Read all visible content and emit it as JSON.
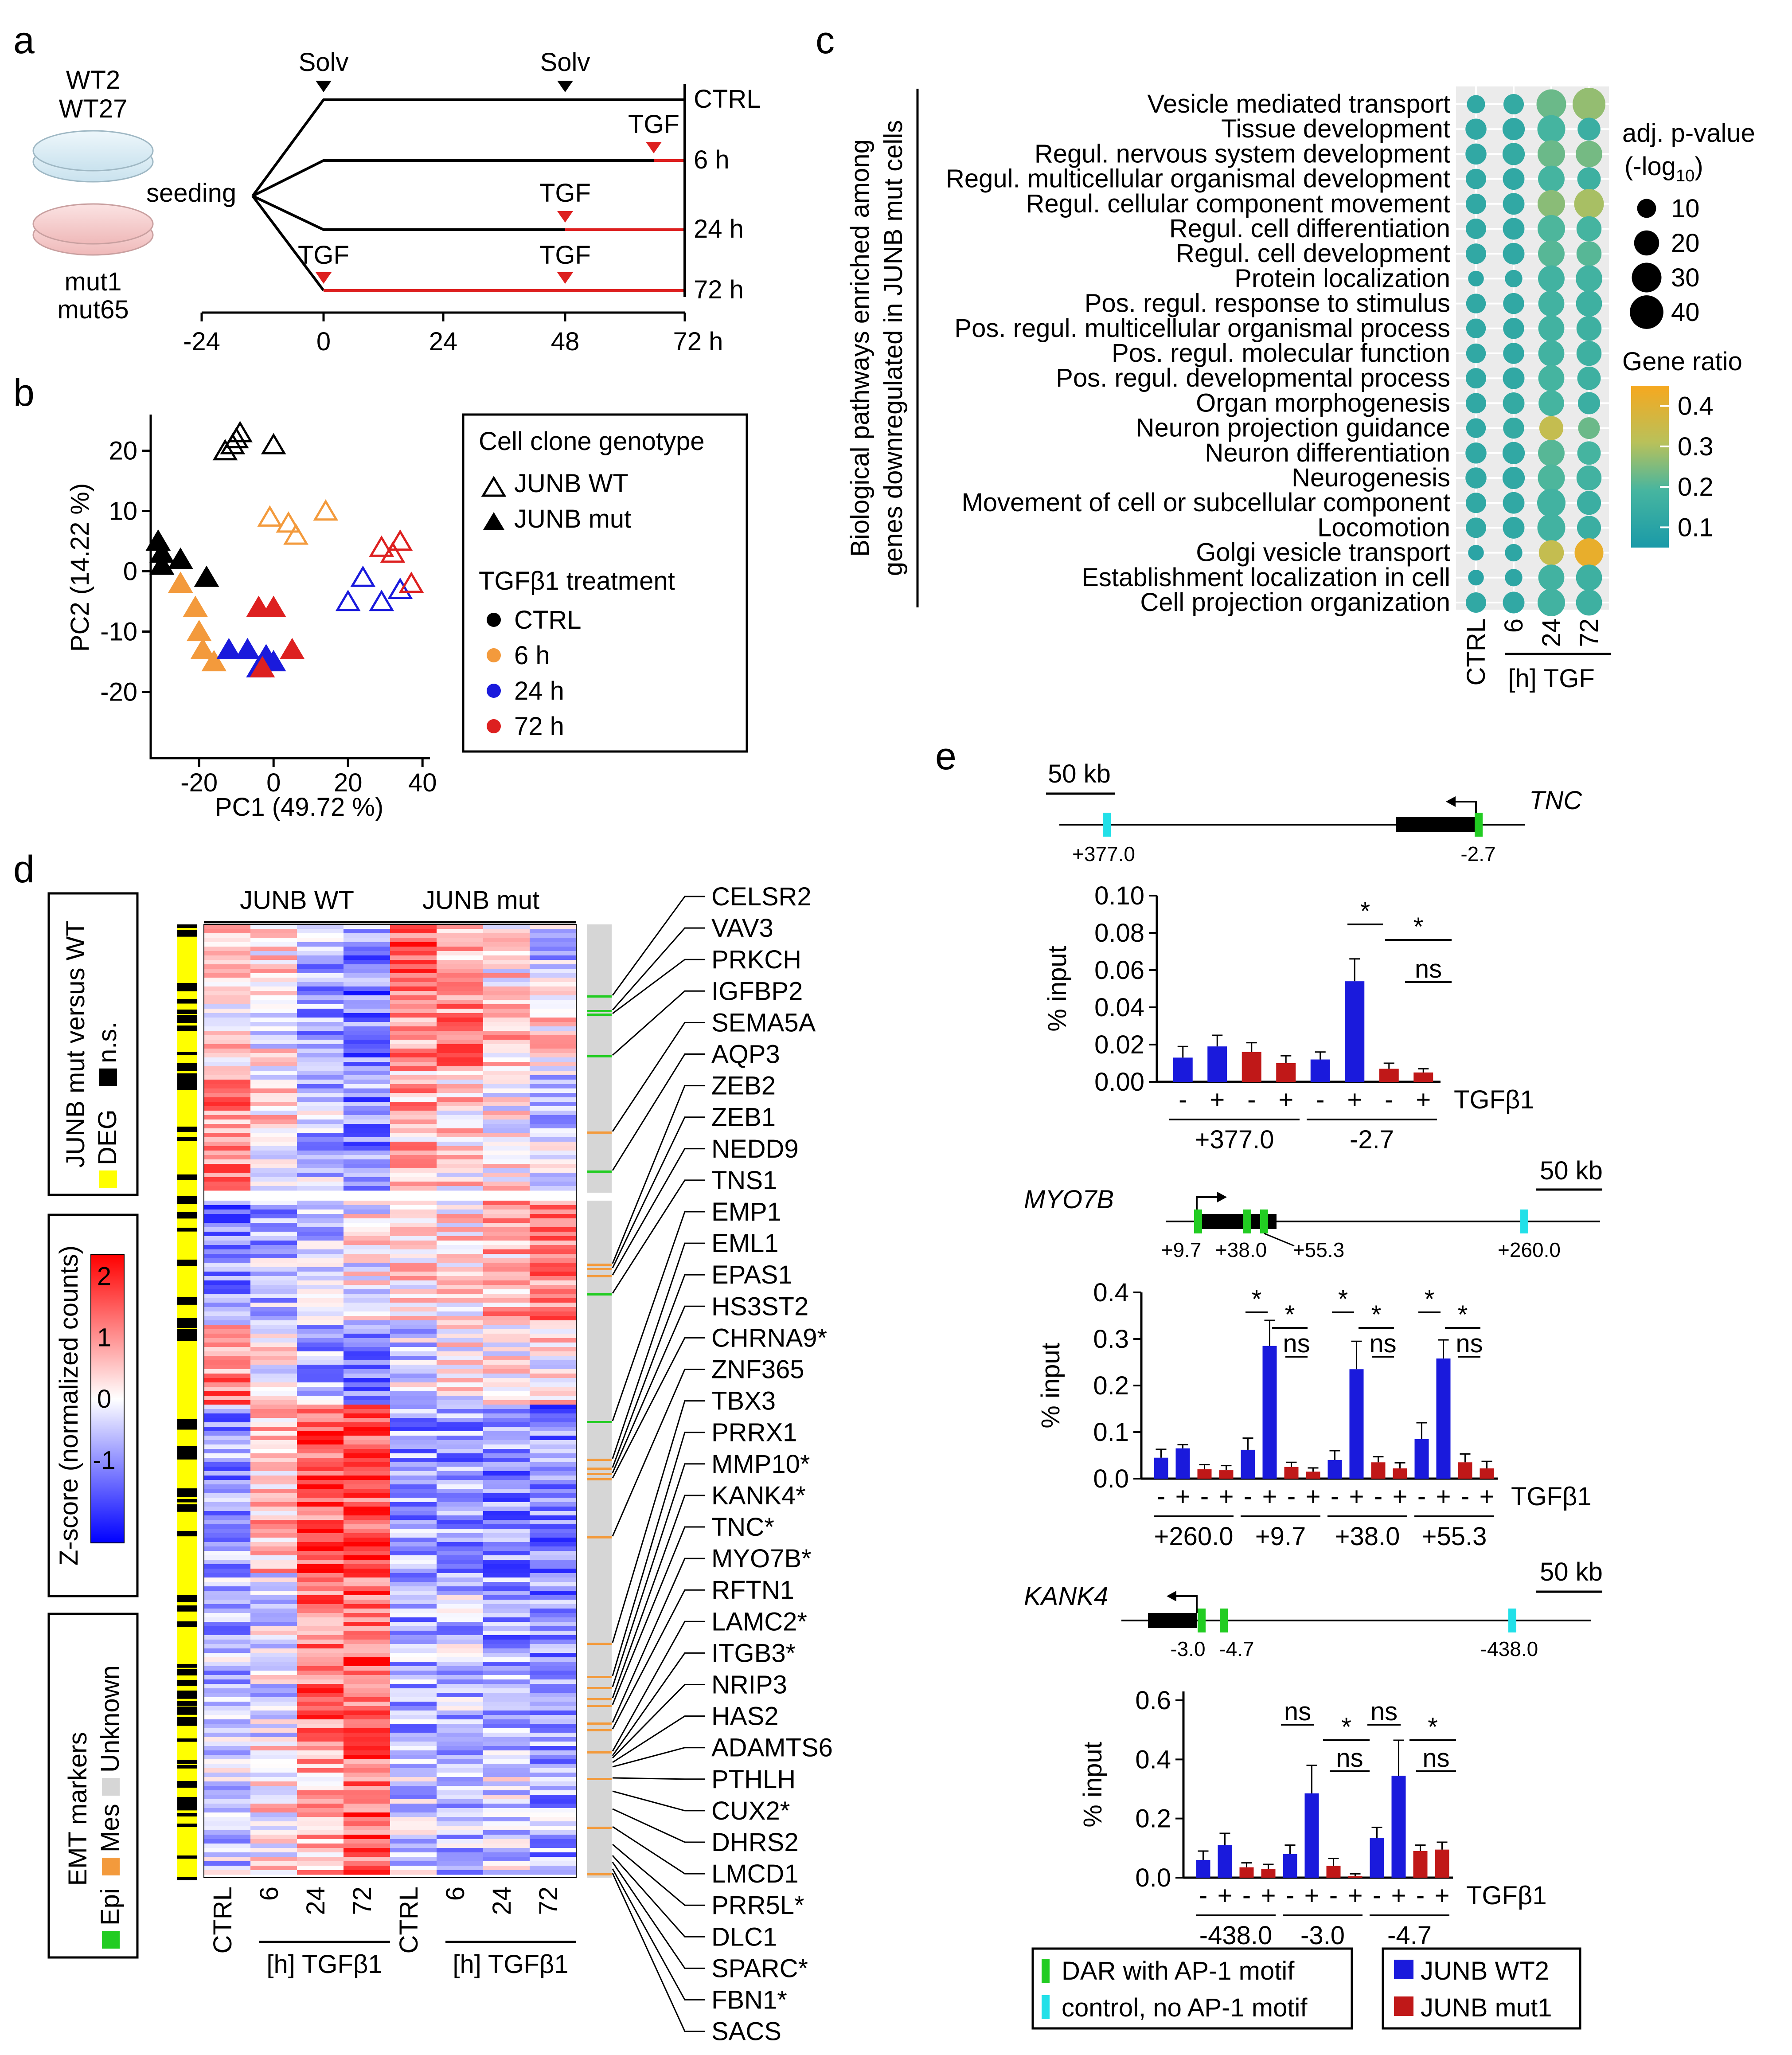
{
  "panels": {
    "a": "a",
    "b": "b",
    "c": "c",
    "d": "d",
    "e": "e"
  },
  "panel_a": {
    "clones_wt": [
      "WT2",
      "WT27"
    ],
    "clones_mut": [
      "mut1",
      "mut65"
    ],
    "seeding": "seeding",
    "solv": "Solv",
    "tgf": "TGF",
    "rows": [
      "CTRL",
      "6 h",
      "24 h",
      "72 h"
    ],
    "axis_ticks": [
      "-24",
      "0",
      "24",
      "48",
      "72 h"
    ]
  },
  "panel_b": {
    "xlabel": "PC1 (49.72 %)",
    "ylabel": "PC2 (14.22 %)",
    "xticks": [
      "-20",
      "0",
      "20",
      "40"
    ],
    "yticks": [
      "20",
      "10",
      "0",
      "-10",
      "-20"
    ],
    "legend": {
      "title1": "Cell clone genotype",
      "wt": "JUNB WT",
      "mut": "JUNB mut",
      "title2": "TGFβ1 treatment",
      "ctrl": "CTRL",
      "h6": "6 h",
      "h24": "24 h",
      "h72": "72 h"
    }
  },
  "panel_c": {
    "ylabel_line1": "Biological pathways enriched among",
    "ylabel_line2": "genes downregulated in JUNB mut cells",
    "pathways": [
      "Vesicle mediated transport",
      "Tissue development",
      "Regul. nervous system development",
      "Regul. multicellular organismal development",
      "Regul. cellular component movement",
      "Regul. cell differentiation",
      "Regul. cell development",
      "Protein localization",
      "Pos. regul. response to stimulus",
      "Pos. regul. multicellular organismal process",
      "Pos. regul. molecular function",
      "Pos. regul. developmental process",
      "Organ morphogenesis",
      "Neuron projection guidance",
      "Neuron differentiation",
      "Neurogenesis",
      "Movement of cell or subcellular component",
      "Locomotion",
      "Golgi vesicle transport",
      "Establishment localization in cell",
      "Cell projection organization"
    ],
    "columns": [
      "CTRL",
      "6",
      "24",
      "72"
    ],
    "col_unit": "[h] TGF",
    "size_title": "adj. p-value",
    "size_title2": "(-log",
    "size_title2_sub": "10",
    "size_title2_end": ")",
    "size_values": [
      "10",
      "20",
      "30",
      "40"
    ],
    "color_title": "Gene ratio",
    "color_values": [
      "0.4",
      "0.3",
      "0.2",
      "0.1"
    ],
    "gene_ratio": [
      [
        0.12,
        0.13,
        0.22,
        0.26
      ],
      [
        0.12,
        0.12,
        0.18,
        0.15
      ],
      [
        0.12,
        0.13,
        0.22,
        0.23
      ],
      [
        0.12,
        0.12,
        0.18,
        0.16
      ],
      [
        0.12,
        0.12,
        0.25,
        0.28
      ],
      [
        0.12,
        0.12,
        0.19,
        0.18
      ],
      [
        0.12,
        0.12,
        0.2,
        0.2
      ],
      [
        0.11,
        0.12,
        0.17,
        0.17
      ],
      [
        0.12,
        0.12,
        0.17,
        0.16
      ],
      [
        0.12,
        0.12,
        0.17,
        0.16
      ],
      [
        0.12,
        0.12,
        0.17,
        0.16
      ],
      [
        0.12,
        0.12,
        0.18,
        0.16
      ],
      [
        0.12,
        0.13,
        0.18,
        0.15
      ],
      [
        0.12,
        0.13,
        0.32,
        0.22
      ],
      [
        0.12,
        0.12,
        0.2,
        0.18
      ],
      [
        0.12,
        0.12,
        0.19,
        0.17
      ],
      [
        0.12,
        0.12,
        0.17,
        0.15
      ],
      [
        0.12,
        0.12,
        0.17,
        0.15
      ],
      [
        0.1,
        0.11,
        0.32,
        0.4
      ],
      [
        0.1,
        0.11,
        0.17,
        0.16
      ],
      [
        0.12,
        0.12,
        0.17,
        0.16
      ]
    ],
    "neglog_p": [
      [
        9,
        12,
        30,
        38
      ],
      [
        13,
        15,
        26,
        16
      ],
      [
        13,
        15,
        25,
        23
      ],
      [
        12,
        14,
        23,
        17
      ],
      [
        12,
        14,
        25,
        30
      ],
      [
        12,
        14,
        25,
        20
      ],
      [
        12,
        14,
        23,
        20
      ],
      [
        6,
        8,
        23,
        23
      ],
      [
        11,
        13,
        22,
        22
      ],
      [
        11,
        13,
        22,
        20
      ],
      [
        11,
        13,
        22,
        20
      ],
      [
        12,
        14,
        22,
        17
      ],
      [
        12,
        14,
        21,
        15
      ],
      [
        11,
        13,
        18,
        14
      ],
      [
        13,
        15,
        23,
        17
      ],
      [
        13,
        15,
        24,
        20
      ],
      [
        12,
        14,
        27,
        18
      ],
      [
        12,
        14,
        26,
        18
      ],
      [
        6,
        8,
        20,
        28
      ],
      [
        6,
        8,
        22,
        22
      ],
      [
        12,
        14,
        25,
        22
      ]
    ]
  },
  "panel_d": {
    "group_wt": "JUNB WT",
    "group_mut": "JUNB mut",
    "col_ctrl": "CTRL",
    "col_6": "6",
    "col_24": "24",
    "col_72": "72",
    "col_unit": "[h] TGFβ1",
    "legend1_line1": "JUNB mut versus WT",
    "legend1_deg": "DEG",
    "legend1_ns": "n.s.",
    "legend2_title": "Z-score (normalized counts)",
    "legend2_ticks": [
      "2",
      "1",
      "0",
      "-1"
    ],
    "legend3_line1": "EMT markers",
    "legend3_epi": "Epi",
    "legend3_mes": "Mes",
    "legend3_unknown": "Unknown",
    "genes": [
      "CELSR2",
      "VAV3",
      "PRKCH",
      "IGFBP2",
      "SEMA5A",
      "AQP3",
      "ZEB2",
      "ZEB1",
      "NEDD9",
      "TNS1",
      "EMP1",
      "EML1",
      "EPAS1",
      "HS3ST2",
      "CHRNA9*",
      "ZNF365",
      "TBX3",
      "PRRX1",
      "MMP10*",
      "KANK4*",
      "TNC*",
      "MYO7B*",
      "RFTN1",
      "LAMC2*",
      "ITGB3*",
      "NRIP3",
      "HAS2",
      "ADAMTS6",
      "PTHLH",
      "CUX2*",
      "DHRS2",
      "LMCD1",
      "PRR5L*",
      "DLC1",
      "SPARC*",
      "FBN1*",
      "SACS"
    ]
  },
  "panel_e": {
    "scale": "50 kb",
    "tgfb1": "TGFβ1",
    "minus": "-",
    "plus": "+",
    "ylabel": "% input",
    "ns": "ns",
    "star": "*",
    "tnc": {
      "gene": "TNC",
      "site_labels": [
        "+377.0",
        "-2.7"
      ],
      "yticks": [
        "0.10",
        "0.08",
        "0.06",
        "0.04",
        "0.02",
        "0.00"
      ],
      "ymax": 0.1,
      "bars_wt": [
        [
          0.013,
          0.019
        ],
        [
          0.012,
          0.054
        ]
      ],
      "bars_mut": [
        [
          0.016,
          0.01
        ],
        [
          0.007,
          0.005
        ]
      ],
      "err_wt": [
        [
          0.006,
          0.006
        ],
        [
          0.004,
          0.012
        ]
      ],
      "err_mut": [
        [
          0.005,
          0.004
        ],
        [
          0.003,
          0.002
        ]
      ]
    },
    "myo7b": {
      "gene": "MYO7B",
      "site_labels": [
        "+9.7",
        "+38.0",
        "+55.3",
        "+260.0"
      ],
      "group_labels": [
        "+260.0",
        "+9.7",
        "+38.0",
        "+55.3"
      ],
      "yticks": [
        "0.4",
        "0.3",
        "0.2",
        "0.1",
        "0.0"
      ],
      "ymax": 0.4,
      "bars_wt": [
        [
          0.045,
          0.065
        ],
        [
          0.062,
          0.285
        ],
        [
          0.04,
          0.235
        ],
        [
          0.085,
          0.258
        ]
      ],
      "bars_mut": [
        [
          0.02,
          0.018
        ],
        [
          0.025,
          0.015
        ],
        [
          0.035,
          0.022
        ],
        [
          0.035,
          0.022
        ]
      ],
      "err_wt": [
        [
          0.018,
          0.008
        ],
        [
          0.025,
          0.055
        ],
        [
          0.02,
          0.06
        ],
        [
          0.035,
          0.04
        ]
      ],
      "err_mut": [
        [
          0.01,
          0.01
        ],
        [
          0.01,
          0.008
        ],
        [
          0.012,
          0.012
        ],
        [
          0.018,
          0.015
        ]
      ]
    },
    "kank4": {
      "gene": "KANK4",
      "site_labels": [
        "-3.0",
        "-4.7",
        "-438.0"
      ],
      "group_labels": [
        "-438.0",
        "-3.0",
        "-4.7"
      ],
      "yticks": [
        "0.6",
        "0.4",
        "0.2",
        "0.0"
      ],
      "ymax": 0.6,
      "bars_wt": [
        [
          0.06,
          0.11
        ],
        [
          0.08,
          0.285
        ],
        [
          0.135,
          0.345
        ]
      ],
      "bars_mut": [
        [
          0.035,
          0.03
        ],
        [
          0.04,
          0.005
        ],
        [
          0.09,
          0.095
        ]
      ],
      "err_wt": [
        [
          0.03,
          0.04
        ],
        [
          0.03,
          0.095
        ],
        [
          0.035,
          0.12
        ]
      ],
      "err_mut": [
        [
          0.015,
          0.015
        ],
        [
          0.025,
          0.008
        ],
        [
          0.02,
          0.025
        ]
      ]
    },
    "legend_dar": "DAR with AP-1 motif",
    "legend_ctrl": "control, no AP-1 motif",
    "legend_wt": "JUNB WT2",
    "legend_mut": "JUNB mut1"
  },
  "colors": {
    "blue": "#1a1adc",
    "red": "#c01818",
    "orange": "#f39a3c",
    "green": "#22cc22",
    "cyan": "#22e0e8",
    "yellow": "#ffff00",
    "gray": "#d6d6d6",
    "dish_blue": "#d9ecf4",
    "dish_red": "#f5cfcf",
    "tgf_red": "#dd2020"
  }
}
